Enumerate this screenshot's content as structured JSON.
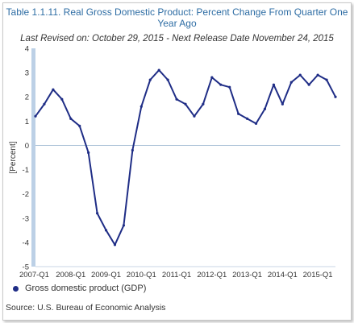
{
  "title": "Table 1.1.11. Real Gross Domestic Product: Percent Change From Quarter One Year Ago",
  "subtitle": "Last Revised on: October 29, 2015 - Next Release Date November 24, 2015",
  "source": "Source: U.S. Bureau of Economic Analysis",
  "colors": {
    "line": "#1f2d86",
    "title": "#2e6da4",
    "axis_band": "#bcd0e6",
    "zero": "#a9c0d6"
  },
  "chart_data": {
    "type": "line",
    "ylabel": "[Percent]",
    "ylim": [
      -5,
      4
    ],
    "yticks": [
      "4",
      "3",
      "2",
      "1",
      "0",
      "-1",
      "-2",
      "-3",
      "-4",
      "-5"
    ],
    "xtick_labels": [
      "2007-Q1",
      "2008-Q1",
      "2009-Q1",
      "2010-Q1",
      "2011-Q1",
      "2012-Q1",
      "2013-Q1",
      "2014-Q1",
      "2015-Q1"
    ],
    "grid": false,
    "legend_position": "bottom-left",
    "series": [
      {
        "name": "Gross domestic product (GDP)",
        "x": [
          "2007-Q1",
          "2007-Q2",
          "2007-Q3",
          "2007-Q4",
          "2008-Q1",
          "2008-Q2",
          "2008-Q3",
          "2008-Q4",
          "2009-Q1",
          "2009-Q2",
          "2009-Q3",
          "2009-Q4",
          "2010-Q1",
          "2010-Q2",
          "2010-Q3",
          "2010-Q4",
          "2011-Q1",
          "2011-Q2",
          "2011-Q3",
          "2011-Q4",
          "2012-Q1",
          "2012-Q2",
          "2012-Q3",
          "2012-Q4",
          "2013-Q1",
          "2013-Q2",
          "2013-Q3",
          "2013-Q4",
          "2014-Q1",
          "2014-Q2",
          "2014-Q3",
          "2014-Q4",
          "2015-Q1",
          "2015-Q2",
          "2015-Q3"
        ],
        "values": [
          1.2,
          1.7,
          2.3,
          1.9,
          1.1,
          0.8,
          -0.3,
          -2.8,
          -3.5,
          -4.1,
          -3.3,
          -0.2,
          1.6,
          2.7,
          3.1,
          2.7,
          1.9,
          1.7,
          1.2,
          1.7,
          2.8,
          2.5,
          2.4,
          1.3,
          1.1,
          0.9,
          1.5,
          2.5,
          1.7,
          2.6,
          2.9,
          2.5,
          2.9,
          2.7,
          2.0
        ]
      }
    ]
  }
}
